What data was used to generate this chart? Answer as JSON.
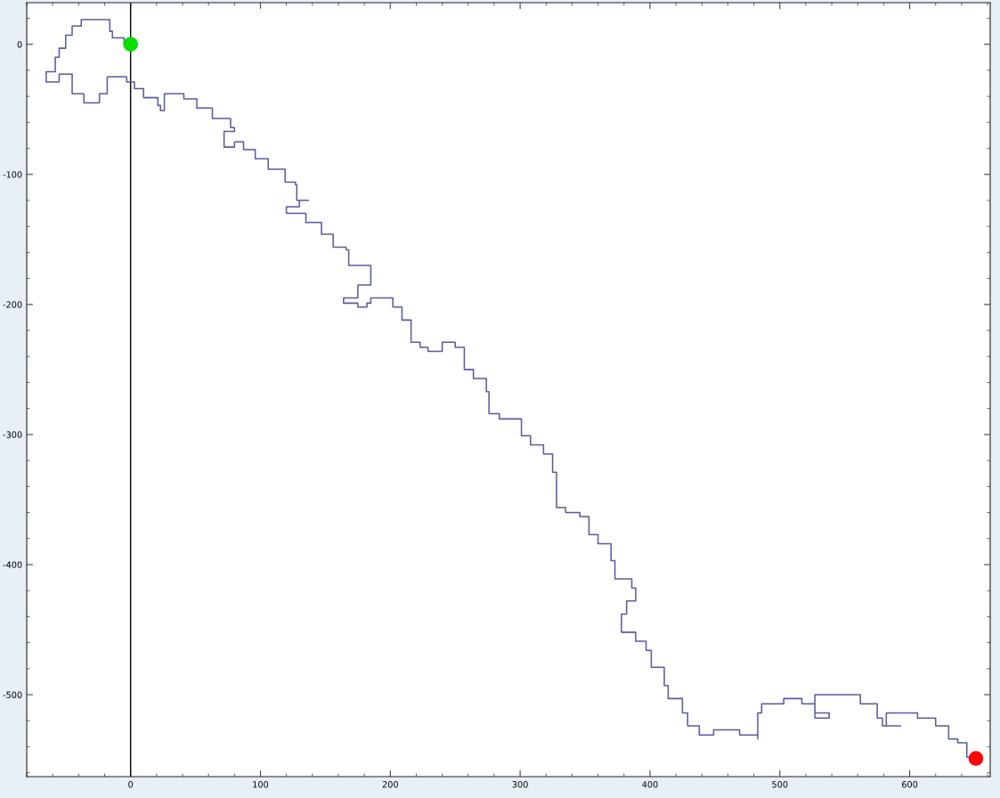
{
  "chart_data": {
    "type": "step",
    "xlim": [
      -80,
      662
    ],
    "ylim": [
      -563,
      32
    ],
    "xticks": [
      0,
      100,
      200,
      300,
      400,
      500,
      600
    ],
    "yticks": [
      0,
      -100,
      -200,
      -300,
      -400,
      -500
    ],
    "grid": false,
    "legend": false,
    "ref_lines": [
      {
        "axis": "x",
        "value": 0,
        "color": "#000000"
      }
    ],
    "series": [
      {
        "color": "#5a5aa0",
        "marker": "none",
        "x": [
          0,
          -5,
          -14,
          -16,
          -31,
          -38,
          -45,
          -50,
          -55,
          -58,
          -65,
          -57,
          -55,
          -45,
          -45,
          -36,
          -26,
          -24,
          -18,
          -18,
          -9,
          -3,
          0,
          3,
          10,
          10,
          18,
          21,
          23,
          26,
          38,
          41,
          48,
          51,
          60,
          63,
          75,
          77,
          80,
          72,
          80,
          84,
          87,
          94,
          96,
          104,
          106,
          116,
          119,
          127,
          128,
          137,
          130,
          120,
          134,
          135,
          144,
          147,
          156,
          156,
          166,
          168,
          180,
          185,
          175,
          164,
          175,
          182,
          185,
          197,
          202,
          209,
          216,
          223,
          229,
          240,
          250,
          257,
          264,
          274,
          276,
          284,
          295,
          301,
          308,
          318,
          325,
          328,
          328,
          335,
          346,
          353,
          360,
          370,
          373,
          386,
          389,
          382,
          378,
          389,
          397,
          401,
          411,
          414,
          425,
          429,
          438,
          449,
          469,
          483,
          483,
          486,
          503,
          517,
          527,
          538,
          527,
          548,
          562,
          575,
          579,
          593,
          582,
          606,
          620,
          630,
          637,
          644,
          651
        ],
        "values": [
          0,
          5,
          10,
          19,
          19,
          14,
          7,
          -3,
          -10,
          -21,
          -29,
          -29,
          -23,
          -26,
          -38,
          -45,
          -45,
          -38,
          -33,
          -25,
          -25,
          -29,
          -29,
          -34,
          -36,
          -41,
          -41,
          -47,
          -51,
          -38,
          -38,
          -42,
          -42,
          -49,
          -49,
          -57,
          -57,
          -64,
          -67,
          -79,
          -75,
          -75,
          -81,
          -81,
          -88,
          -88,
          -96,
          -96,
          -106,
          -108,
          -120,
          -120,
          -125,
          -130,
          -130,
          -137,
          -137,
          -146,
          -146,
          -156,
          -158,
          -170,
          -170,
          -185,
          -195,
          -199,
          -202,
          -199,
          -195,
          -195,
          -202,
          -212,
          -229,
          -233,
          -236,
          -229,
          -233,
          -250,
          -257,
          -267,
          -284,
          -288,
          -288,
          -301,
          -308,
          -315,
          -329,
          -342,
          -356,
          -360,
          -363,
          -377,
          -384,
          -397,
          -411,
          -418,
          -428,
          -438,
          -452,
          -459,
          -466,
          -479,
          -493,
          -503,
          -514,
          -524,
          -531,
          -527,
          -531,
          -534,
          -514,
          -507,
          -503,
          -507,
          -514,
          -518,
          -500,
          -500,
          -507,
          -518,
          -524,
          -524,
          -514,
          -518,
          -524,
          -534,
          -537,
          -548,
          -548
        ]
      },
      {
        "type": "scatter",
        "color": "#00e000",
        "marker": "circle",
        "x": [
          0
        ],
        "values": [
          0
        ]
      },
      {
        "type": "scatter",
        "color": "#ff0000",
        "marker": "circle",
        "x": [
          651
        ],
        "values": [
          -549
        ]
      }
    ]
  }
}
